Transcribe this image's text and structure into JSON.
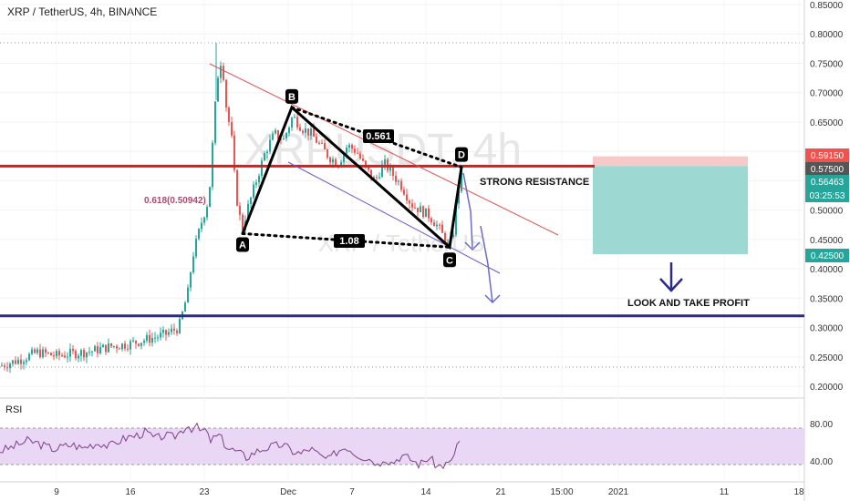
{
  "header": {
    "title": "XRP / TetherUS, 4h, BINANCE"
  },
  "watermark": {
    "symbol": "XRPUSDT, 4h",
    "name": "XRP / TetherUS"
  },
  "rsi": {
    "label": "RSI",
    "levels": [
      "80.00",
      "40.00"
    ]
  },
  "colors": {
    "up": "#26a69a",
    "down": "#ef5350",
    "resistance": "#d81b1b",
    "support": "#2a2a8c",
    "pattern": "#000000",
    "channel_top": "#e05050",
    "channel_bottom": "#6a5acd",
    "target_zone": "#9ed8d2",
    "stop_zone": "#f7c9c9",
    "rsi_line": "#7e3f86",
    "rsi_band": "#e9d7f5",
    "price_tag_red": "#ef5350",
    "price_tag_green": "#26a69a",
    "price_tag_dark": "#555555"
  },
  "chart_data": {
    "type": "candlestick",
    "symbol": "XRP / TetherUS",
    "timeframe": "4h",
    "exchange": "BINANCE",
    "ylim": [
      0.18,
      0.85
    ],
    "y_ticks": [
      "0.85000",
      "0.80000",
      "0.75000",
      "0.70000",
      "0.65000",
      "0.60000",
      "0.55000",
      "0.50000",
      "0.45000",
      "0.40000",
      "0.35000",
      "0.30000",
      "0.25000",
      "0.20000"
    ],
    "x_ticks": [
      "9",
      "16",
      "23",
      "Dec",
      "7",
      "14",
      "21",
      "15:00",
      "2021",
      "11",
      "18"
    ],
    "price_series_approx": [
      [
        0,
        0.235
      ],
      [
        20,
        0.245
      ],
      [
        40,
        0.258
      ],
      [
        60,
        0.252
      ],
      [
        80,
        0.256
      ],
      [
        100,
        0.26
      ],
      [
        120,
        0.268
      ],
      [
        140,
        0.272
      ],
      [
        160,
        0.28
      ],
      [
        180,
        0.288
      ],
      [
        195,
        0.3
      ],
      [
        205,
        0.36
      ],
      [
        210,
        0.42
      ],
      [
        215,
        0.45
      ],
      [
        220,
        0.48
      ],
      [
        228,
        0.52
      ],
      [
        232,
        0.61
      ],
      [
        236,
        0.7
      ],
      [
        240,
        0.76
      ],
      [
        244,
        0.73
      ],
      [
        248,
        0.66
      ],
      [
        252,
        0.64
      ],
      [
        256,
        0.56
      ],
      [
        260,
        0.5
      ],
      [
        265,
        0.47
      ],
      [
        270,
        0.5
      ],
      [
        280,
        0.55
      ],
      [
        290,
        0.6
      ],
      [
        300,
        0.63
      ],
      [
        310,
        0.62
      ],
      [
        320,
        0.66
      ],
      [
        330,
        0.64
      ],
      [
        340,
        0.63
      ],
      [
        350,
        0.61
      ],
      [
        360,
        0.59
      ],
      [
        370,
        0.58
      ],
      [
        380,
        0.61
      ],
      [
        390,
        0.6
      ],
      [
        400,
        0.57
      ],
      [
        410,
        0.55
      ],
      [
        420,
        0.58
      ],
      [
        430,
        0.56
      ],
      [
        440,
        0.54
      ],
      [
        450,
        0.51
      ],
      [
        460,
        0.5
      ],
      [
        470,
        0.49
      ],
      [
        480,
        0.47
      ],
      [
        490,
        0.44
      ],
      [
        495,
        0.45
      ],
      [
        500,
        0.52
      ],
      [
        506,
        0.57
      ]
    ],
    "rsi_series_approx": [
      [
        0,
        55
      ],
      [
        10,
        58
      ],
      [
        20,
        62
      ],
      [
        30,
        66
      ],
      [
        40,
        64
      ],
      [
        50,
        60
      ],
      [
        60,
        57
      ],
      [
        70,
        60
      ],
      [
        80,
        62
      ],
      [
        90,
        58
      ],
      [
        100,
        62
      ],
      [
        110,
        64
      ],
      [
        120,
        60
      ],
      [
        130,
        66
      ],
      [
        140,
        70
      ],
      [
        150,
        72
      ],
      [
        160,
        76
      ],
      [
        170,
        68
      ],
      [
        180,
        72
      ],
      [
        190,
        70
      ],
      [
        200,
        78
      ],
      [
        205,
        84
      ],
      [
        210,
        80
      ],
      [
        215,
        82
      ],
      [
        220,
        76
      ],
      [
        225,
        78
      ],
      [
        230,
        66
      ],
      [
        240,
        72
      ],
      [
        250,
        58
      ],
      [
        260,
        54
      ],
      [
        270,
        48
      ],
      [
        280,
        54
      ],
      [
        290,
        58
      ],
      [
        300,
        60
      ],
      [
        310,
        62
      ],
      [
        320,
        55
      ],
      [
        330,
        52
      ],
      [
        340,
        58
      ],
      [
        350,
        50
      ],
      [
        360,
        45
      ],
      [
        370,
        55
      ],
      [
        380,
        60
      ],
      [
        390,
        52
      ],
      [
        400,
        48
      ],
      [
        410,
        45
      ],
      [
        415,
        38
      ],
      [
        420,
        48
      ],
      [
        430,
        42
      ],
      [
        440,
        50
      ],
      [
        450,
        46
      ],
      [
        460,
        40
      ],
      [
        470,
        48
      ],
      [
        480,
        38
      ],
      [
        488,
        40
      ],
      [
        495,
        42
      ],
      [
        500,
        60
      ],
      [
        505,
        67
      ]
    ],
    "current_price": "0.57500",
    "price_labels": [
      {
        "text": "0.59150",
        "value": 0.5915,
        "color": "price_tag_red"
      },
      {
        "text": "0.57500",
        "value": 0.575,
        "color": "price_tag_dark"
      },
      {
        "text": "0.56463",
        "value": 0.56463,
        "color": "price_tag_green"
      },
      {
        "text": "03:25:53",
        "value": 0.542,
        "color": "price_tag_green"
      },
      {
        "text": "0.42500",
        "value": 0.425,
        "color": "price_tag_green"
      }
    ],
    "horizontal_lines": [
      {
        "name": "strong-resistance",
        "value": 0.575,
        "color": "resistance"
      },
      {
        "name": "support",
        "value": 0.32,
        "color": "support"
      }
    ],
    "harmonic_pattern": {
      "points": [
        {
          "label": "A",
          "value": 0.46
        },
        {
          "label": "B",
          "value": 0.675
        },
        {
          "label": "C",
          "value": 0.437
        },
        {
          "label": "D",
          "value": 0.573
        }
      ],
      "ratios": [
        {
          "text": "0.561",
          "between": "B-D"
        },
        {
          "text": "1.08",
          "between": "A-C"
        }
      ]
    },
    "fib_label": "0.618(0.50942)",
    "annotations": [
      {
        "name": "strong-resistance-label",
        "text": "STRONG RESISTANCE"
      },
      {
        "name": "take-profit-label",
        "text": "LOOK AND TAKE PROFIT"
      }
    ],
    "position_box": {
      "entry": 0.575,
      "stop": 0.5915,
      "target": 0.425
    }
  }
}
